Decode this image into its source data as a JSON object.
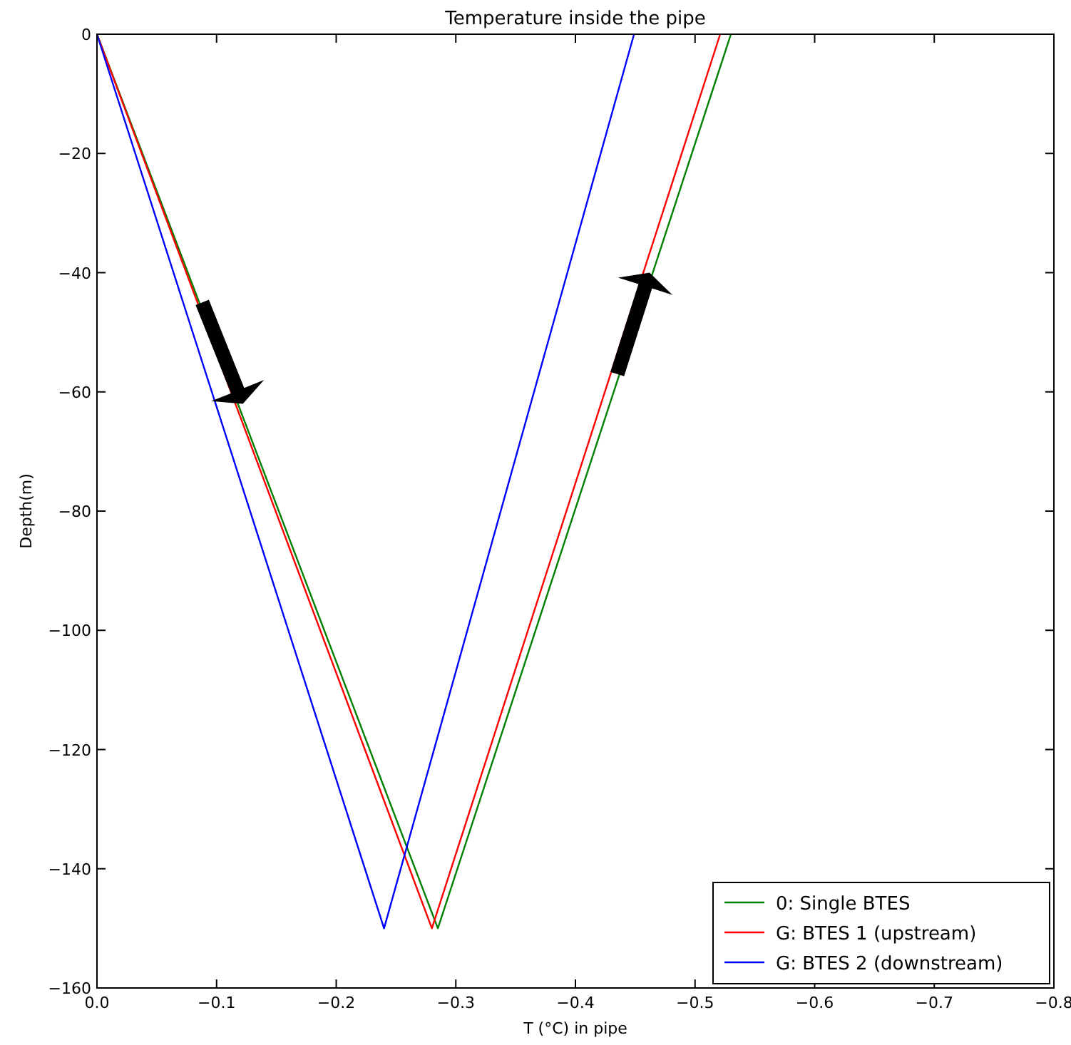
{
  "chart_data": {
    "type": "line",
    "title": "Temperature inside the pipe",
    "xlabel": "T (°C) in pipe",
    "ylabel": "Depth(m)",
    "xlim": [
      0,
      -0.8
    ],
    "ylim": [
      -160,
      0
    ],
    "xticks": [
      {
        "value": 0,
        "label": "0.0"
      },
      {
        "value": -0.1,
        "label": "−0.1"
      },
      {
        "value": -0.2,
        "label": "−0.2"
      },
      {
        "value": -0.3,
        "label": "−0.3"
      },
      {
        "value": -0.4,
        "label": "−0.4"
      },
      {
        "value": -0.5,
        "label": "−0.5"
      },
      {
        "value": -0.6,
        "label": "−0.6"
      },
      {
        "value": -0.7,
        "label": "−0.7"
      },
      {
        "value": -0.8,
        "label": "−0.8"
      }
    ],
    "yticks": [
      {
        "value": -160,
        "label": "−160"
      },
      {
        "value": -140,
        "label": "−140"
      },
      {
        "value": -120,
        "label": "−120"
      },
      {
        "value": -100,
        "label": "−100"
      },
      {
        "value": -80,
        "label": "−80"
      },
      {
        "value": -60,
        "label": "−60"
      },
      {
        "value": -40,
        "label": "−40"
      },
      {
        "value": -20,
        "label": "−20"
      },
      0
    ],
    "series": [
      {
        "name": "0: Single BTES",
        "color": "#008000",
        "x": [
          0,
          -0.285,
          -0.53
        ],
        "values": [
          0,
          -150,
          0
        ]
      },
      {
        "name": "G: BTES 1 (upstream)",
        "color": "#ff0000",
        "x": [
          0,
          -0.28,
          -0.521
        ],
        "values": [
          0,
          -150,
          0
        ]
      },
      {
        "name": "G: BTES 2 (downstream)",
        "color": "#0000ff",
        "x": [
          0,
          -0.24,
          -0.449
        ],
        "values": [
          0,
          -150,
          0
        ]
      }
    ],
    "legend": "bottom right",
    "grid": false,
    "marker": "none",
    "line_style": "solid"
  }
}
